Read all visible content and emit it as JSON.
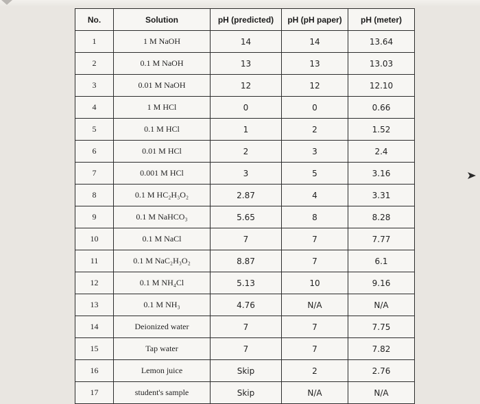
{
  "table": {
    "headers": [
      "No.",
      "Solution",
      "pH (predicted)",
      "pH (pH paper)",
      "pH (meter)"
    ],
    "rows": [
      {
        "no": "1",
        "solution": "1 M NaOH",
        "predicted": "14",
        "paper": "14",
        "meter": "13.64"
      },
      {
        "no": "2",
        "solution": "0.1 M NaOH",
        "predicted": "13",
        "paper": "13",
        "meter": "13.03"
      },
      {
        "no": "3",
        "solution": "0.01 M NaOH",
        "predicted": "12",
        "paper": "12",
        "meter": "12.10"
      },
      {
        "no": "4",
        "solution": "1 M HCl",
        "predicted": "0",
        "paper": "0",
        "meter": "0.66"
      },
      {
        "no": "5",
        "solution": "0.1 M HCl",
        "predicted": "1",
        "paper": "2",
        "meter": "1.52"
      },
      {
        "no": "6",
        "solution": "0.01 M HCl",
        "predicted": "2",
        "paper": "3",
        "meter": "2.4"
      },
      {
        "no": "7",
        "solution": "0.001 M HCl",
        "predicted": "3",
        "paper": "5",
        "meter": "3.16"
      },
      {
        "no": "8",
        "solution": "0.1 M HC₂H₃O₂",
        "predicted": "2.87",
        "paper": "4",
        "meter": "3.31"
      },
      {
        "no": "9",
        "solution": "0.1 M NaHCO₃",
        "predicted": "5.65",
        "paper": "8",
        "meter": "8.28"
      },
      {
        "no": "10",
        "solution": "0.1 M NaCl",
        "predicted": "7",
        "paper": "7",
        "meter": "7.77"
      },
      {
        "no": "11",
        "solution": "0.1 M NaC₂H₃O₂",
        "predicted": "8.87",
        "paper": "7",
        "meter": "6.1"
      },
      {
        "no": "12",
        "solution": "0.1 M NH₄Cl",
        "predicted": "5.13",
        "paper": "10",
        "meter": "9.16"
      },
      {
        "no": "13",
        "solution": "0.1 M NH₃",
        "predicted": "4.76",
        "paper": "N/A",
        "meter": "N/A"
      },
      {
        "no": "14",
        "solution": "Deionized water",
        "predicted": "7",
        "paper": "7",
        "meter": "7.75"
      },
      {
        "no": "15",
        "solution": "Tap water",
        "predicted": "7",
        "paper": "7",
        "meter": "7.82"
      },
      {
        "no": "16",
        "solution": "Lemon juice",
        "predicted": "Skip",
        "paper": "2",
        "meter": "2.76"
      },
      {
        "no": "17",
        "solution": "student's sample",
        "predicted": "Skip",
        "paper": "N/A",
        "meter": "N/A"
      }
    ]
  },
  "icons": {
    "cursor": "mouse-pointer-icon",
    "corner": "page-corner-mark"
  },
  "colors": {
    "background": "#e9e6e1",
    "table_bg": "#f7f6f3",
    "border": "#2b2b2b"
  }
}
